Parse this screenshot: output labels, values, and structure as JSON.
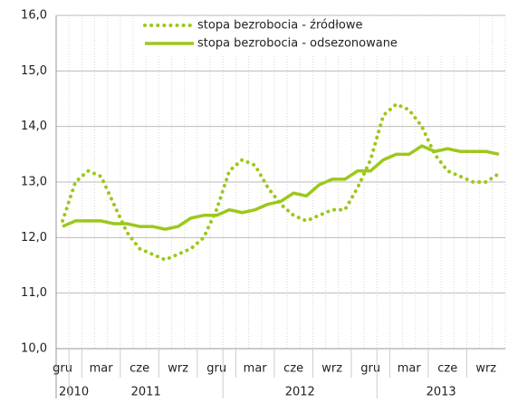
{
  "chart_data": {
    "type": "line",
    "categories": [
      "gru",
      null,
      null,
      "mar",
      null,
      null,
      "cze",
      null,
      null,
      "wrz",
      null,
      null,
      "gru",
      null,
      null,
      "mar",
      null,
      null,
      "cze",
      null,
      null,
      "wrz",
      null,
      null,
      "gru",
      null,
      null,
      "mar",
      null,
      null,
      "cze",
      null,
      null,
      "wrz",
      null
    ],
    "years": [
      "2010",
      "2011",
      "2012",
      "2013"
    ],
    "series": [
      {
        "name": "stopa bezrobocia  - źródłowe",
        "color": "#9cc81c",
        "style": "dotted",
        "values": [
          12.3,
          13.0,
          13.2,
          13.1,
          12.6,
          12.1,
          11.8,
          11.7,
          11.6,
          11.7,
          11.8,
          12.0,
          12.5,
          13.2,
          13.4,
          13.3,
          12.9,
          12.6,
          12.4,
          12.3,
          12.4,
          12.5,
          12.5,
          12.9,
          13.4,
          14.2,
          14.4,
          14.3,
          14.0,
          13.5,
          13.2,
          13.1,
          13.0,
          13.0,
          13.15
        ]
      },
      {
        "name": "stopa bezrobocia  - odsezonowane",
        "color": "#9cc81c",
        "style": "solid",
        "values": [
          12.2,
          12.3,
          12.3,
          12.3,
          12.25,
          12.25,
          12.2,
          12.2,
          12.15,
          12.2,
          12.35,
          12.4,
          12.4,
          12.5,
          12.45,
          12.5,
          12.6,
          12.65,
          12.8,
          12.75,
          12.95,
          13.05,
          13.05,
          13.2,
          13.2,
          13.4,
          13.5,
          13.5,
          13.65,
          13.55,
          13.6,
          13.55,
          13.55,
          13.55,
          13.5
        ]
      }
    ],
    "ylim": [
      10,
      16
    ],
    "yticks": [
      {
        "value": 10,
        "label": "10,0"
      },
      {
        "value": 11,
        "label": "11,0"
      },
      {
        "value": 12,
        "label": "12,0"
      },
      {
        "value": 13,
        "label": "13,0"
      },
      {
        "value": 14,
        "label": "14,0"
      },
      {
        "value": 15,
        "label": "15,0"
      },
      {
        "value": 16,
        "label": "16,0"
      }
    ],
    "grid": true,
    "legend": "top"
  }
}
